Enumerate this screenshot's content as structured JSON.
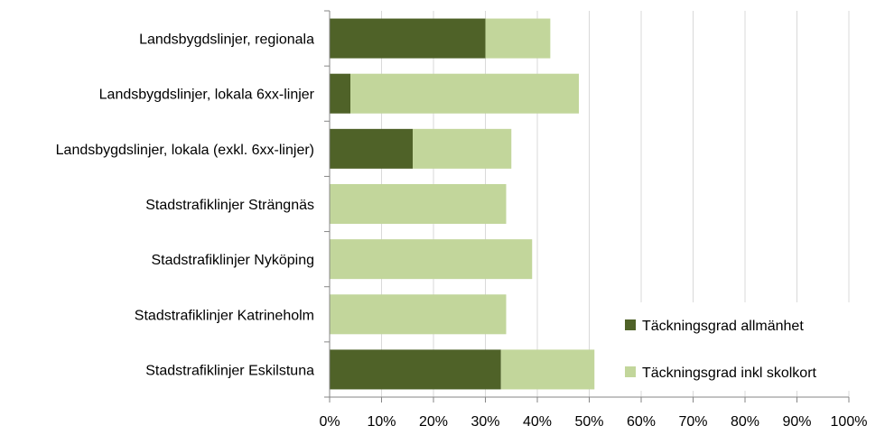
{
  "chart_data": {
    "type": "bar",
    "orientation": "horizontal",
    "stacked": true,
    "categories": [
      "Landsbygdslinjer, regionala",
      "Landsbygdslinjer, lokala 6xx-linjer",
      "Landsbygdslinjer, lokala (exkl. 6xx-linjer)",
      "Stadstrafiklinjer Strängnäs",
      "Stadstrafiklinjer Nyköping",
      "Stadstrafiklinjer Katrineholm",
      "Stadstrafiklinjer Eskilstuna"
    ],
    "series": [
      {
        "name": "Täckningsgrad allmänhet",
        "values": [
          30,
          4,
          16,
          0,
          0,
          0,
          33
        ],
        "color": "#4f6228"
      },
      {
        "name": "Täckningsgrad inkl skolkort",
        "values": [
          12.5,
          44,
          19,
          34,
          39,
          34,
          18
        ],
        "color": "#c2d69b"
      }
    ],
    "xlim": [
      0,
      100
    ],
    "xticks": [
      "0%",
      "10%",
      "20%",
      "30%",
      "40%",
      "50%",
      "60%",
      "70%",
      "80%",
      "90%",
      "100%"
    ],
    "grid": true,
    "legend_position": "bottom-right",
    "title": "",
    "xlabel": "",
    "ylabel": ""
  }
}
